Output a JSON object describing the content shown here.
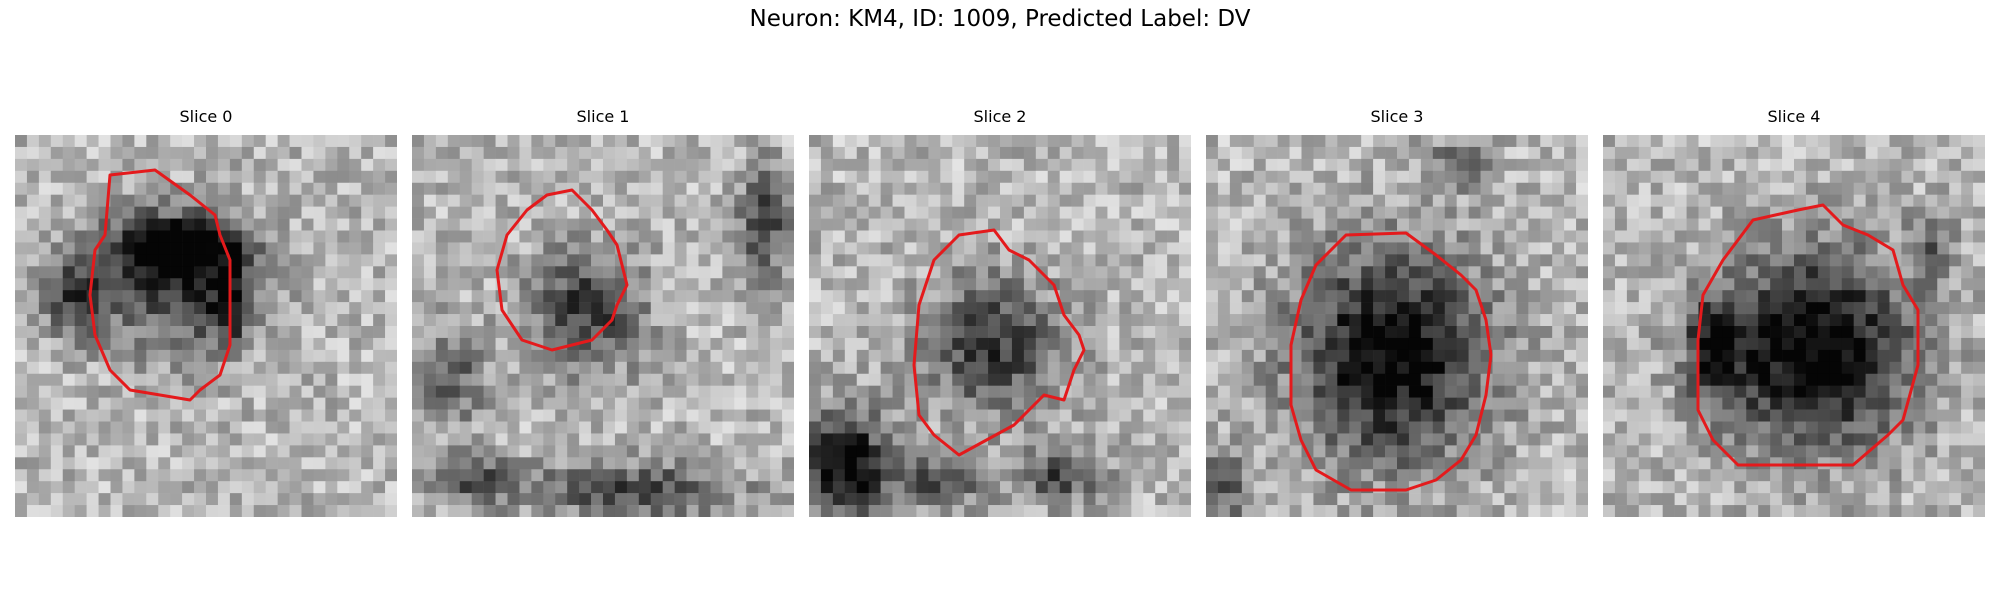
{
  "figure": {
    "title": "Neuron: KM4, ID: 1009, Predicted Label: DV"
  },
  "contour_color": "#e41a1c",
  "panels": [
    {
      "title": "Slice 0"
    },
    {
      "title": "Slice 1"
    },
    {
      "title": "Slice 2"
    },
    {
      "title": "Slice 3"
    },
    {
      "title": "Slice 4"
    }
  ]
}
